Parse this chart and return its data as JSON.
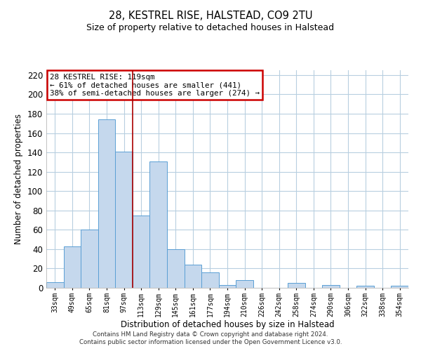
{
  "title": "28, KESTREL RISE, HALSTEAD, CO9 2TU",
  "subtitle": "Size of property relative to detached houses in Halstead",
  "xlabel": "Distribution of detached houses by size in Halstead",
  "ylabel": "Number of detached properties",
  "bar_labels": [
    "33sqm",
    "49sqm",
    "65sqm",
    "81sqm",
    "97sqm",
    "113sqm",
    "129sqm",
    "145sqm",
    "161sqm",
    "177sqm",
    "194sqm",
    "210sqm",
    "226sqm",
    "242sqm",
    "258sqm",
    "274sqm",
    "290sqm",
    "306sqm",
    "322sqm",
    "338sqm",
    "354sqm"
  ],
  "bar_values": [
    6,
    43,
    60,
    174,
    141,
    75,
    131,
    40,
    24,
    16,
    3,
    8,
    0,
    0,
    5,
    0,
    3,
    0,
    2,
    0,
    2
  ],
  "bar_color": "#c5d8ed",
  "bar_edge_color": "#5a9fd4",
  "vline_color": "#aa0000",
  "ylim": [
    0,
    225
  ],
  "yticks": [
    0,
    20,
    40,
    60,
    80,
    100,
    120,
    140,
    160,
    180,
    200,
    220
  ],
  "annotation_title": "28 KESTREL RISE: 119sqm",
  "annotation_line1": "← 61% of detached houses are smaller (441)",
  "annotation_line2": "38% of semi-detached houses are larger (274) →",
  "annotation_box_color": "#ffffff",
  "annotation_box_edge": "#cc0000",
  "footnote1": "Contains HM Land Registry data © Crown copyright and database right 2024.",
  "footnote2": "Contains public sector information licensed under the Open Government Licence v3.0.",
  "background_color": "#ffffff",
  "grid_color": "#b8cfe0"
}
